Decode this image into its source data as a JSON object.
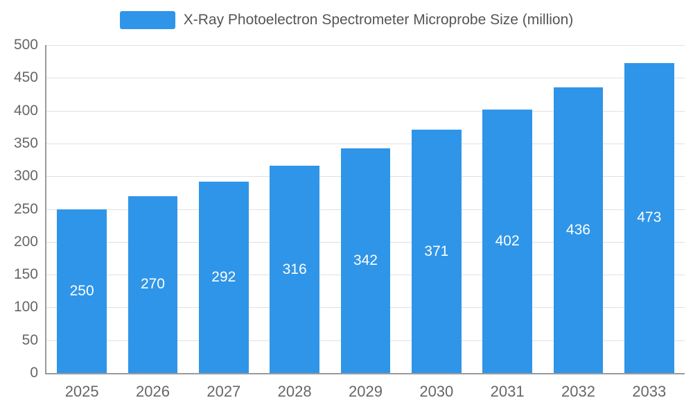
{
  "legend": {
    "label": "X-Ray Photoelectron Spectrometer Microprobe Size (million)"
  },
  "colors": {
    "bar": "#2F95E8",
    "grid": "#e0e0e0",
    "axis": "#9a9a9a",
    "tick_text": "#666666",
    "title_text": "#555555",
    "bar_label_text": "#ffffff"
  },
  "chart_data": {
    "type": "bar",
    "title": "X-Ray Photoelectron Spectrometer Microprobe Size (million)",
    "categories": [
      "2025",
      "2026",
      "2027",
      "2028",
      "2029",
      "2030",
      "2031",
      "2032",
      "2033"
    ],
    "values": [
      250,
      270,
      292,
      316,
      342,
      371,
      402,
      436,
      473
    ],
    "xlabel": "",
    "ylabel": "",
    "ylim": [
      0,
      500
    ],
    "ytick_step": 50,
    "grid": true,
    "legend_position": "top",
    "bar_color": "#2F95E8",
    "value_labels": "inside-center"
  }
}
